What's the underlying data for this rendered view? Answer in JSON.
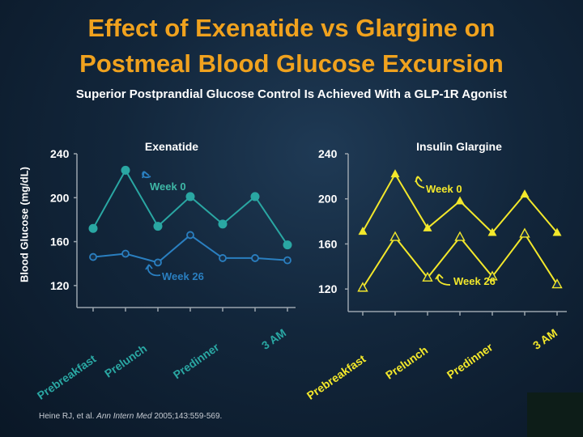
{
  "title_line1": "Effect of Exenatide vs Glargine on",
  "title_line2": "Postmeal Blood Glucose Excursion",
  "subtitle": "Superior Postprandial Glucose Control Is Achieved With a GLP-1R Agonist",
  "y_axis_label": "Blood Glucose (mg/dL)",
  "citation": {
    "authors": "Heine RJ, et al.",
    "journal": "Ann Intern Med",
    "details": "2005;143:559-569."
  },
  "colors": {
    "title": "#f0a21e",
    "exenatide": "#2aa7a3",
    "exenatide_week0": "#3fb8a7",
    "exenatide_week26": "#2a7fc0",
    "glargine": "#f3e82b",
    "axis": "#9aa4ad",
    "tick_text": "#ffffff"
  },
  "chart_data": [
    {
      "type": "line",
      "title": "Exenatide",
      "categories": [
        "Prebreakfast",
        "Prelunch",
        "Predinner",
        "3 AM"
      ],
      "x": [
        1,
        2,
        3,
        4,
        5,
        6,
        7
      ],
      "ylim": [
        100,
        240
      ],
      "yticks": [
        120,
        160,
        200,
        240
      ],
      "ylabel": "Blood Glucose (mg/dL)",
      "series": [
        {
          "name": "Week 0",
          "marker": "filled-circle",
          "values": [
            172,
            225,
            174,
            201,
            176,
            201,
            157
          ]
        },
        {
          "name": "Week 26",
          "marker": "open-circle",
          "values": [
            146,
            149,
            141,
            166,
            145,
            145,
            143
          ]
        }
      ]
    },
    {
      "type": "line",
      "title": "Insulin Glargine",
      "categories": [
        "Prebreakfast",
        "Prelunch",
        "Predinner",
        "3 AM"
      ],
      "x": [
        1,
        2,
        3,
        4,
        5,
        6,
        7
      ],
      "ylim": [
        100,
        240
      ],
      "yticks": [
        120,
        160,
        200,
        240
      ],
      "ylabel": "",
      "series": [
        {
          "name": "Week 0",
          "marker": "filled-triangle",
          "values": [
            171,
            222,
            174,
            198,
            170,
            204,
            170
          ]
        },
        {
          "name": "Week 26",
          "marker": "open-triangle",
          "values": [
            121,
            166,
            130,
            166,
            131,
            169,
            124
          ]
        }
      ]
    }
  ]
}
